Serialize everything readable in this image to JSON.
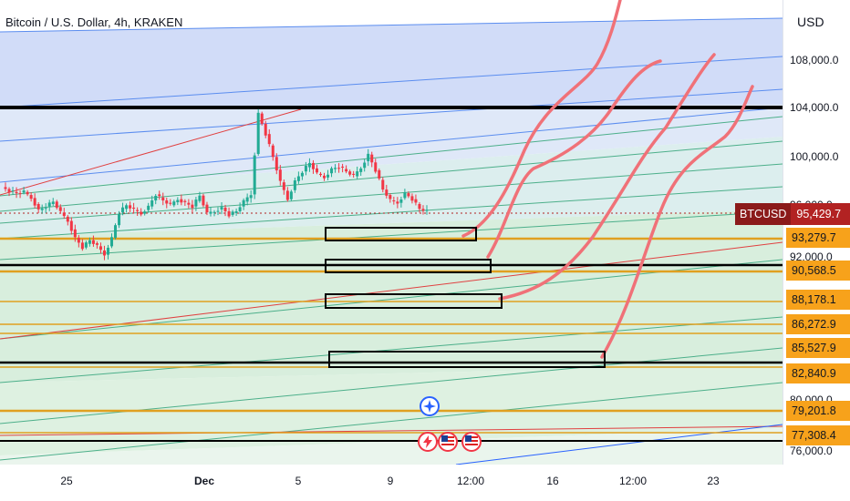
{
  "header": {
    "symbol_title": "Bitcoin / U.S. Dollar, 4h, KRAKEN",
    "currency": "USD"
  },
  "price_axis": {
    "labels": [
      "108,000.0",
      "104,000.0",
      "100,000.0",
      "96,000.0",
      "92,000.0",
      "80,000.0",
      "76,000.0"
    ]
  },
  "price_tags": [
    "93,279.7",
    "90,568.5",
    "88,178.1",
    "86,272.9",
    "85,527.9",
    "82,840.9",
    "79,201.8",
    "77,308.4"
  ],
  "current_price": {
    "symbol": "BTCUSD",
    "value": "95,429.7"
  },
  "time_axis": {
    "labels": [
      "25",
      "Dec",
      "5",
      "9",
      "12:00",
      "16",
      "12:00",
      "23"
    ]
  },
  "colors": {
    "accent_orange": "#f7a21b",
    "current_price_red": "#b22222",
    "drawing_red": "#f07178",
    "candle_up": "#22ab94",
    "candle_down": "#f23645"
  },
  "icons": [
    "star-event-icon",
    "lightning-event-icon",
    "us-flag-icon",
    "us-flag-icon"
  ],
  "chart_data": {
    "type": "candlestick",
    "title": "Bitcoin / U.S. Dollar, 4h, KRAKEN",
    "ylabel": "USD",
    "ylim": [
      75500,
      110000
    ],
    "current_price": 95429.7,
    "horizontal_levels": [
      104000,
      93279.7,
      90568.5,
      88178.1,
      86272.9,
      85527.9,
      82840.9,
      79201.8,
      77308.4
    ],
    "price_path": [
      97400,
      97100,
      96900,
      97000,
      96500,
      95500,
      95800,
      96200,
      95300,
      94600,
      93200,
      92400,
      93000,
      92500,
      91800,
      93200,
      95300,
      95900,
      95500,
      95200,
      95800,
      96800,
      96300,
      95900,
      96400,
      96100,
      95800,
      96700,
      95200,
      95400,
      95700,
      95100,
      95400,
      96200,
      96800,
      103500,
      101800,
      99900,
      97800,
      96400,
      97900,
      98700,
      99400,
      98500,
      98200,
      98900,
      99100,
      98700,
      98300,
      99000,
      100100,
      98800,
      97200,
      96300,
      96100,
      96900,
      96400,
      95600,
      95400
    ]
  }
}
